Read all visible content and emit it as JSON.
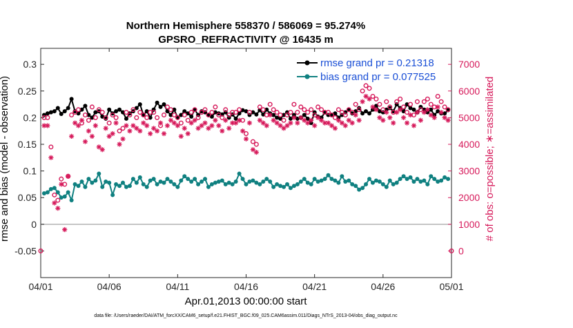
{
  "chart_data": {
    "type": "line",
    "title": "Northern Hemisphere 558370 / 586069 = 95.274%",
    "subtitle": "GPSRO_REFRACTIVITY @ 16435 m",
    "xlabel": "Apr.01,2013 00:00:00 start",
    "ylabel_left": "rmse and bias (model - observation)",
    "ylabel_right": "# of obs: o=possible; ∗=assimilated",
    "footnote": "data file: /Users/raeder/DAI/ATM_forcXX/CAM6_setup/f.e21.FHIST_BGC.f09_025.CAM6assim.011/Diags_NTrS_2013-04/obs_diag_output.nc",
    "x_range": [
      0,
      30
    ],
    "ylim_left": [
      -0.1,
      0.33
    ],
    "ylim_right": [
      -1000,
      7600
    ],
    "x_ticks": [
      0,
      5,
      10,
      15,
      20,
      25,
      30
    ],
    "x_tick_labels": [
      "04/01",
      "04/06",
      "04/11",
      "04/16",
      "04/21",
      "04/26",
      "05/01"
    ],
    "y_left_ticks": [
      -0.05,
      0,
      0.05,
      0.1,
      0.15,
      0.2,
      0.25,
      0.3
    ],
    "y_left_tick_labels": [
      "-0.05",
      "0",
      "0.05",
      "0.1",
      "0.15",
      "0.2",
      "0.25",
      "0.3"
    ],
    "y_right_ticks": [
      0,
      1000,
      2000,
      3000,
      4000,
      5000,
      6000,
      7000
    ],
    "y_right_tick_labels": [
      "0",
      "1000",
      "2000",
      "3000",
      "4000",
      "5000",
      "6000",
      "7000"
    ],
    "zero_line": 0,
    "legend": {
      "placement": "top-right",
      "entries": [
        "rmse grand pr = 0.21318",
        "bias grand pr = 0.077525"
      ]
    },
    "colors": {
      "rmse": "#000000",
      "bias": "#0f8080",
      "counts": "#d6195a",
      "legend_text": "#1a4fd6",
      "zero_line": "#b3b3b3"
    },
    "series": [
      {
        "key": "rmse",
        "axis": "left",
        "marker": "filled-circle",
        "x": [
          0.25,
          0.5,
          0.75,
          1.0,
          1.25,
          1.5,
          1.75,
          2.0,
          2.25,
          2.5,
          2.75,
          3.0,
          3.25,
          3.5,
          3.75,
          4.0,
          4.25,
          4.5,
          4.75,
          5.0,
          5.25,
          5.5,
          5.75,
          6.0,
          6.25,
          6.5,
          6.75,
          7.0,
          7.25,
          7.5,
          7.75,
          8.0,
          8.25,
          8.5,
          8.75,
          9.0,
          9.25,
          9.5,
          9.75,
          10.0,
          10.25,
          10.5,
          10.75,
          11.0,
          11.25,
          11.5,
          11.75,
          12.0,
          12.25,
          12.5,
          12.75,
          13.0,
          13.25,
          13.5,
          13.75,
          14.0,
          14.25,
          14.5,
          14.75,
          15.0,
          15.25,
          15.5,
          15.75,
          16.0,
          16.25,
          16.5,
          16.75,
          17.0,
          17.25,
          17.5,
          17.75,
          18.0,
          18.25,
          18.5,
          18.75,
          19.0,
          19.25,
          19.5,
          19.75,
          20.0,
          20.25,
          20.5,
          20.75,
          21.0,
          21.25,
          21.5,
          21.75,
          22.0,
          22.25,
          22.5,
          22.75,
          23.0,
          23.25,
          23.5,
          23.75,
          24.0,
          24.25,
          24.5,
          24.75,
          25.0,
          25.25,
          25.5,
          25.75,
          26.0,
          26.25,
          26.5,
          26.75,
          27.0,
          27.25,
          27.5,
          27.75,
          28.0,
          28.25,
          28.5,
          28.75,
          29.0,
          29.25,
          29.5,
          29.75
        ],
        "y": [
          0.205,
          0.208,
          0.21,
          0.212,
          0.218,
          0.207,
          0.212,
          0.218,
          0.235,
          0.212,
          0.208,
          0.215,
          0.222,
          0.205,
          0.2,
          0.21,
          0.212,
          0.202,
          0.198,
          0.215,
          0.208,
          0.212,
          0.215,
          0.21,
          0.198,
          0.208,
          0.212,
          0.218,
          0.225,
          0.205,
          0.212,
          0.2,
          0.215,
          0.228,
          0.22,
          0.225,
          0.212,
          0.205,
          0.215,
          0.2,
          0.205,
          0.212,
          0.208,
          0.202,
          0.215,
          0.205,
          0.212,
          0.21,
          0.205,
          0.202,
          0.21,
          0.208,
          0.206,
          0.21,
          0.2,
          0.206,
          0.198,
          0.208,
          0.214,
          0.212,
          0.205,
          0.21,
          0.206,
          0.214,
          0.206,
          0.215,
          0.208,
          0.205,
          0.2,
          0.198,
          0.205,
          0.21,
          0.198,
          0.205,
          0.198,
          0.2,
          0.205,
          0.198,
          0.19,
          0.21,
          0.202,
          0.2,
          0.21,
          0.205,
          0.205,
          0.208,
          0.2,
          0.205,
          0.21,
          0.215,
          0.208,
          0.212,
          0.218,
          0.208,
          0.212,
          0.208,
          0.215,
          0.222,
          0.212,
          0.21,
          0.215,
          0.218,
          0.212,
          0.225,
          0.218,
          0.212,
          0.225,
          0.218,
          0.215,
          0.21,
          0.22,
          0.215,
          0.21,
          0.215,
          0.205,
          0.212,
          0.208,
          0.208,
          0.214
        ]
      },
      {
        "key": "bias",
        "axis": "left",
        "marker": "filled-circle",
        "x": [
          0.25,
          0.5,
          0.75,
          1.0,
          1.25,
          1.5,
          1.75,
          2.0,
          2.25,
          2.5,
          2.75,
          3.0,
          3.25,
          3.5,
          3.75,
          4.0,
          4.25,
          4.5,
          4.75,
          5.0,
          5.25,
          5.5,
          5.75,
          6.0,
          6.25,
          6.5,
          6.75,
          7.0,
          7.25,
          7.5,
          7.75,
          8.0,
          8.25,
          8.5,
          8.75,
          9.0,
          9.25,
          9.5,
          9.75,
          10.0,
          10.25,
          10.5,
          10.75,
          11.0,
          11.25,
          11.5,
          11.75,
          12.0,
          12.25,
          12.5,
          12.75,
          13.0,
          13.25,
          13.5,
          13.75,
          14.0,
          14.25,
          14.5,
          14.75,
          15.0,
          15.25,
          15.5,
          15.75,
          16.0,
          16.25,
          16.5,
          16.75,
          17.0,
          17.25,
          17.5,
          17.75,
          18.0,
          18.25,
          18.5,
          18.75,
          19.0,
          19.25,
          19.5,
          19.75,
          20.0,
          20.25,
          20.5,
          20.75,
          21.0,
          21.25,
          21.5,
          21.75,
          22.0,
          22.25,
          22.5,
          22.75,
          23.0,
          23.25,
          23.5,
          23.75,
          24.0,
          24.25,
          24.5,
          24.75,
          25.0,
          25.25,
          25.5,
          25.75,
          26.0,
          26.25,
          26.5,
          26.75,
          27.0,
          27.25,
          27.5,
          27.75,
          28.0,
          28.25,
          28.5,
          28.75,
          29.0,
          29.25,
          29.5,
          29.75
        ],
        "y": [
          0.058,
          0.06,
          0.066,
          0.068,
          0.06,
          0.05,
          0.052,
          0.06,
          0.045,
          0.075,
          0.072,
          0.08,
          0.07,
          0.085,
          0.078,
          0.082,
          0.095,
          0.07,
          0.08,
          0.078,
          0.055,
          0.075,
          0.072,
          0.078,
          0.07,
          0.072,
          0.085,
          0.078,
          0.088,
          0.075,
          0.07,
          0.082,
          0.085,
          0.075,
          0.08,
          0.078,
          0.085,
          0.08,
          0.075,
          0.07,
          0.082,
          0.09,
          0.085,
          0.08,
          0.085,
          0.075,
          0.08,
          0.085,
          0.07,
          0.075,
          0.078,
          0.08,
          0.082,
          0.075,
          0.078,
          0.075,
          0.08,
          0.095,
          0.085,
          0.075,
          0.08,
          0.082,
          0.078,
          0.075,
          0.08,
          0.085,
          0.08,
          0.07,
          0.075,
          0.072,
          0.07,
          0.075,
          0.068,
          0.072,
          0.075,
          0.08,
          0.085,
          0.078,
          0.075,
          0.085,
          0.08,
          0.082,
          0.085,
          0.092,
          0.085,
          0.082,
          0.078,
          0.09,
          0.08,
          0.082,
          0.075,
          0.072,
          0.065,
          0.068,
          0.075,
          0.085,
          0.078,
          0.082,
          0.08,
          0.075,
          0.07,
          0.082,
          0.075,
          0.078,
          0.085,
          0.09,
          0.085,
          0.088,
          0.08,
          0.085,
          0.08,
          0.082,
          0.075,
          0.09,
          0.085,
          0.08,
          0.082,
          0.088,
          0.085
        ]
      },
      {
        "key": "possible",
        "axis": "right",
        "marker": "open-circle",
        "x": [
          0,
          0.25,
          0.5,
          0.75,
          1.0,
          1.25,
          1.5,
          1.75,
          2.0,
          2.25,
          2.5,
          2.75,
          3.0,
          3.25,
          3.5,
          3.75,
          4.0,
          4.25,
          4.5,
          4.75,
          5.0,
          5.25,
          5.5,
          5.75,
          6.0,
          6.25,
          6.5,
          6.75,
          7.0,
          7.25,
          7.5,
          7.75,
          8.0,
          8.25,
          8.5,
          8.75,
          9.0,
          9.25,
          9.5,
          9.75,
          10.0,
          10.25,
          10.5,
          10.75,
          11.0,
          11.25,
          11.5,
          11.75,
          12.0,
          12.25,
          12.5,
          12.75,
          13.0,
          13.25,
          13.5,
          13.75,
          14.0,
          14.25,
          14.5,
          14.75,
          15.0,
          15.25,
          15.5,
          15.75,
          16.0,
          16.25,
          16.5,
          16.75,
          17.0,
          17.25,
          17.5,
          17.75,
          18.0,
          18.25,
          18.5,
          18.75,
          19.0,
          19.25,
          19.5,
          19.75,
          20.0,
          20.25,
          20.5,
          20.75,
          21.0,
          21.25,
          21.5,
          21.75,
          22.0,
          22.25,
          22.5,
          22.75,
          23.0,
          23.25,
          23.5,
          23.75,
          24.0,
          24.25,
          24.5,
          24.75,
          25.0,
          25.25,
          25.5,
          25.75,
          26.0,
          26.25,
          26.5,
          26.75,
          27.0,
          27.25,
          27.5,
          27.75,
          28.0,
          28.25,
          28.5,
          28.75,
          29.0,
          29.25,
          29.5,
          29.75,
          30.0
        ],
        "y": [
          0,
          5000,
          5000,
          3900,
          2100,
          1900,
          2700,
          2500,
          2800,
          5100,
          5200,
          5300,
          4800,
          5100,
          4900,
          5400,
          5000,
          5300,
          5200,
          5000,
          4800,
          5100,
          5000,
          4500,
          4600,
          5200,
          5100,
          5300,
          5000,
          5200,
          5100,
          5000,
          5200,
          5200,
          5000,
          4700,
          5100,
          5400,
          5300,
          5100,
          5000,
          4800,
          5100,
          4900,
          5200,
          5300,
          5000,
          5200,
          5300,
          5100,
          5200,
          5400,
          5100,
          5000,
          5300,
          5100,
          5200,
          5200,
          5300,
          4900,
          4400,
          5200,
          4100,
          4000,
          5400,
          5300,
          5100,
          5500,
          5300,
          5200,
          5100,
          4900,
          5100,
          5200,
          5500,
          5200,
          5400,
          5300,
          5200,
          5300,
          5100,
          5400,
          5300,
          5200,
          5200,
          5100,
          5000,
          5300,
          5200,
          5100,
          5300,
          5200,
          5500,
          5300,
          6000,
          6200,
          6100,
          5800,
          5700,
          5500,
          5300,
          5600,
          5400,
          5200,
          5600,
          5700,
          5400,
          5200,
          5500,
          5100,
          5600,
          5300,
          5600,
          5700,
          5500,
          5400,
          5800,
          5600,
          5400,
          5300,
          0
        ]
      },
      {
        "key": "assimilated",
        "axis": "right",
        "marker": "asterisk",
        "x": [
          0.25,
          0.5,
          0.75,
          1.0,
          1.25,
          1.5,
          1.75,
          2.0,
          2.25,
          2.5,
          2.75,
          3.0,
          3.25,
          3.5,
          3.75,
          4.0,
          4.25,
          4.5,
          4.75,
          5.0,
          5.25,
          5.5,
          5.75,
          6.0,
          6.25,
          6.5,
          6.75,
          7.0,
          7.25,
          7.5,
          7.75,
          8.0,
          8.25,
          8.5,
          8.75,
          9.0,
          9.25,
          9.5,
          9.75,
          10.0,
          10.25,
          10.5,
          10.75,
          11.0,
          11.25,
          11.5,
          11.75,
          12.0,
          12.25,
          12.5,
          12.75,
          13.0,
          13.25,
          13.5,
          13.75,
          14.0,
          14.25,
          14.5,
          14.75,
          15.0,
          15.25,
          15.5,
          15.75,
          16.0,
          16.25,
          16.5,
          16.75,
          17.0,
          17.25,
          17.5,
          17.75,
          18.0,
          18.25,
          18.5,
          18.75,
          19.0,
          19.25,
          19.5,
          19.75,
          20.0,
          20.25,
          20.5,
          20.75,
          21.0,
          21.25,
          21.5,
          21.75,
          22.0,
          22.25,
          22.5,
          22.75,
          23.0,
          23.25,
          23.5,
          23.75,
          24.0,
          24.25,
          24.5,
          24.75,
          25.0,
          25.25,
          25.5,
          25.75,
          26.0,
          26.25,
          26.5,
          26.75,
          27.0,
          27.25,
          27.5,
          27.75,
          28.0,
          28.25,
          28.5,
          28.75,
          29.0,
          29.25,
          29.5,
          29.75
        ],
        "y": [
          4700,
          4700,
          3500,
          1800,
          1600,
          2500,
          800,
          2800,
          4300,
          4800,
          4700,
          4900,
          4100,
          4500,
          4300,
          4700,
          3900,
          3800,
          4600,
          4300,
          4400,
          4800,
          4000,
          4200,
          4700,
          4500,
          4700,
          4600,
          4500,
          4800,
          4700,
          4400,
          4600,
          4500,
          4800,
          4400,
          4700,
          4900,
          4800,
          4700,
          4300,
          4600,
          4400,
          4800,
          4900,
          4600,
          4700,
          4800,
          4600,
          4700,
          4900,
          4700,
          4500,
          4900,
          4600,
          4800,
          4800,
          4900,
          4500,
          4200,
          4800,
          3800,
          3700,
          4900,
          4800,
          4700,
          5100,
          4900,
          4800,
          4700,
          4600,
          4700,
          4800,
          5000,
          4800,
          5000,
          4900,
          4800,
          4900,
          4700,
          5000,
          4900,
          4800,
          4800,
          4700,
          4600,
          4900,
          4800,
          4700,
          4900,
          4800,
          5100,
          4900,
          5600,
          5800,
          5700,
          5400,
          5300,
          5000,
          4900,
          5200,
          5000,
          4800,
          5200,
          5300,
          5000,
          4800,
          5100,
          4700,
          5200,
          4900,
          5200,
          5300,
          5100,
          5000,
          5400,
          5200,
          5000,
          4900
        ]
      }
    ]
  }
}
